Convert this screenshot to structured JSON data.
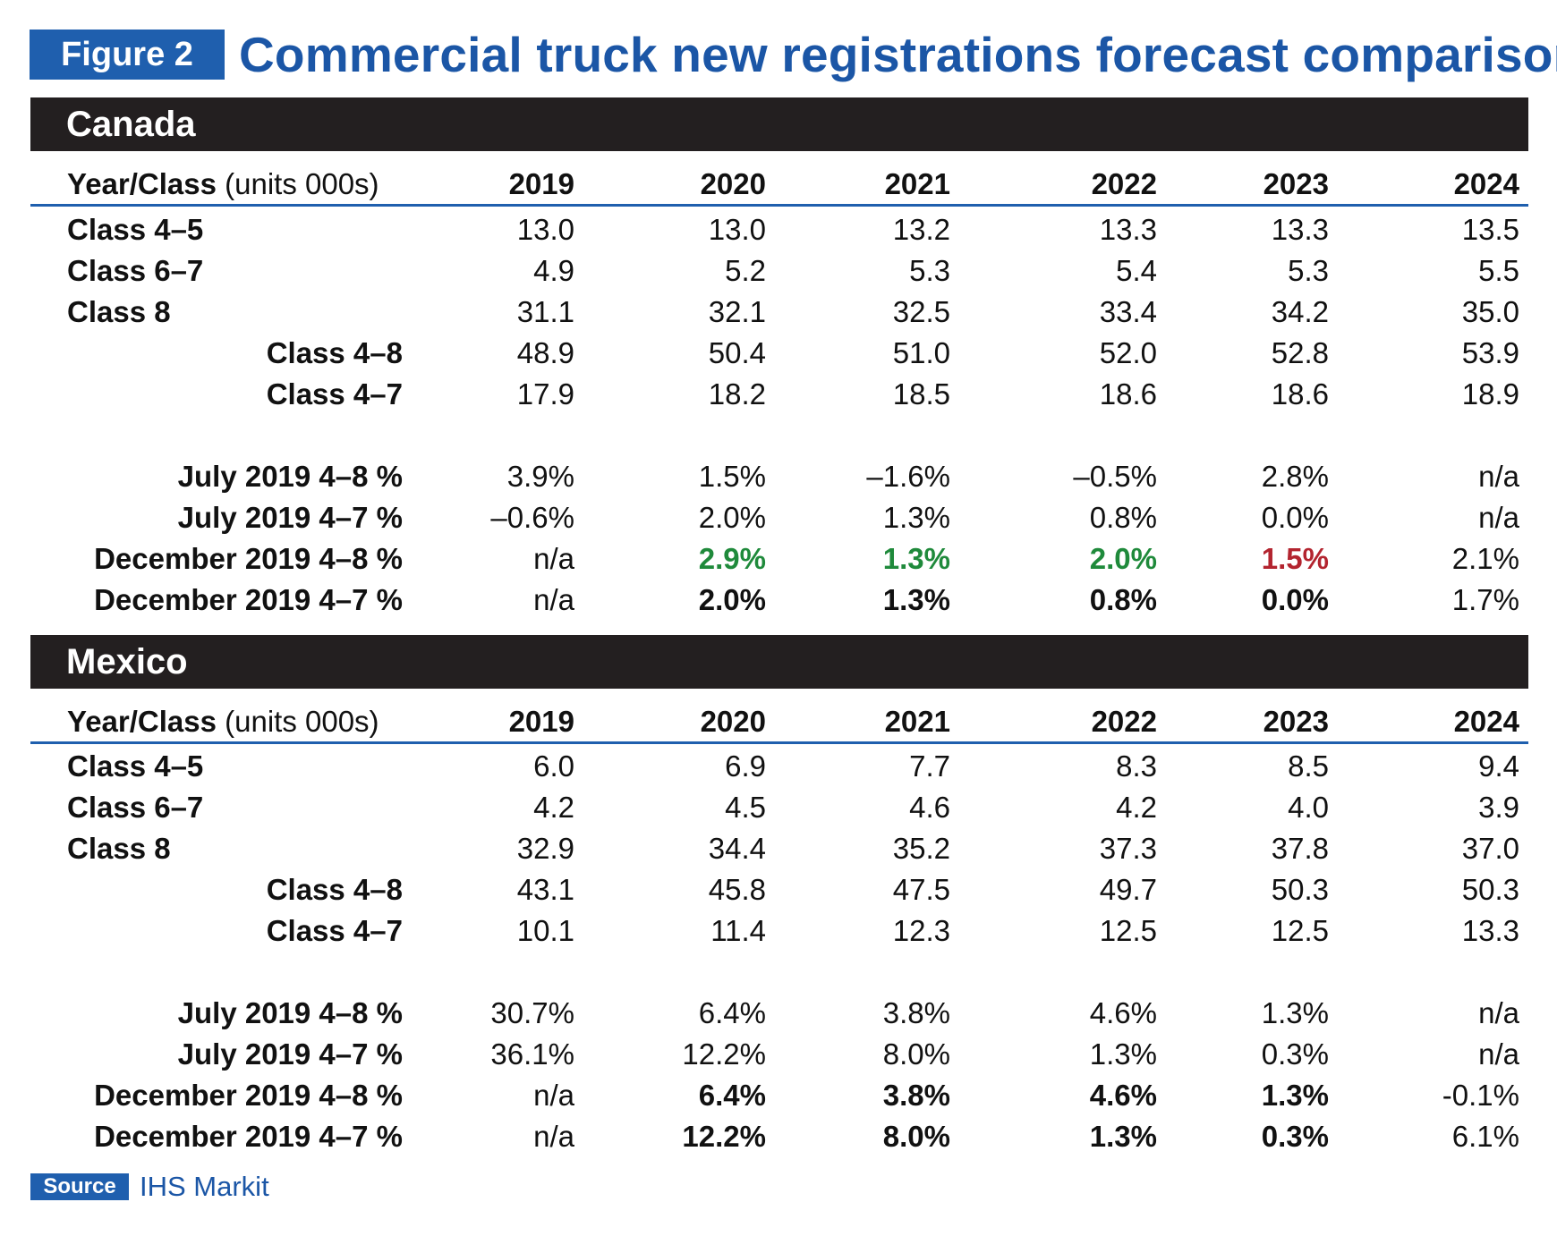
{
  "figure": {
    "badge": "Figure 2",
    "title": "Commercial truck new registrations forecast comparison"
  },
  "source": {
    "label": "Source",
    "text": "IHS Markit"
  },
  "canada": {
    "name": "Canada",
    "header": {
      "label": "Year/Class",
      "unit": " (units 000s)",
      "years": [
        "2019",
        "2020",
        "2021",
        "2022",
        "2023",
        "2024"
      ]
    },
    "units": [
      {
        "label": "Class 4–5",
        "values": [
          "13.0",
          "13.0",
          "13.2",
          "13.3",
          "13.3",
          "13.5"
        ]
      },
      {
        "label": "Class 6–7",
        "values": [
          "4.9",
          "5.2",
          "5.3",
          "5.4",
          "5.3",
          "5.5"
        ]
      },
      {
        "label": "Class 8",
        "values": [
          "31.1",
          "32.1",
          "32.5",
          "33.4",
          "34.2",
          "35.0"
        ]
      },
      {
        "label": "Class 4–8",
        "values": [
          "48.9",
          "50.4",
          "51.0",
          "52.0",
          "52.8",
          "53.9"
        ]
      },
      {
        "label": "Class 4–7",
        "values": [
          "17.9",
          "18.2",
          "18.5",
          "18.6",
          "18.6",
          "18.9"
        ]
      }
    ],
    "pct": [
      {
        "label": "July 2019 4–8 %",
        "values": [
          "3.9%",
          "1.5%",
          "–1.6%",
          "–0.5%",
          "2.8%",
          "n/a"
        ]
      },
      {
        "label": "July 2019 4–7 %",
        "values": [
          "–0.6%",
          "2.0%",
          "1.3%",
          "0.8%",
          "0.0%",
          "n/a"
        ]
      },
      {
        "label": "December 2019 4–8 %",
        "values": [
          "n/a",
          "2.9%",
          "1.3%",
          "2.0%",
          "1.5%",
          "2.1%"
        ]
      },
      {
        "label": "December 2019 4–7 %",
        "values": [
          "n/a",
          "2.0%",
          "1.3%",
          "0.8%",
          "0.0%",
          "1.7%"
        ]
      }
    ],
    "highlight_colors": {
      "up": "#1f8a3b",
      "down": "#b3242f"
    }
  },
  "mexico": {
    "name": "Mexico",
    "header": {
      "label": "Year/Class",
      "unit": " (units 000s)",
      "years": [
        "2019",
        "2020",
        "2021",
        "2022",
        "2023",
        "2024"
      ]
    },
    "units": [
      {
        "label": "Class 4–5",
        "values": [
          "6.0",
          "6.9",
          "7.7",
          "8.3",
          "8.5",
          "9.4"
        ]
      },
      {
        "label": "Class 6–7",
        "values": [
          "4.2",
          "4.5",
          "4.6",
          "4.2",
          "4.0",
          "3.9"
        ]
      },
      {
        "label": "Class 8",
        "values": [
          "32.9",
          "34.4",
          "35.2",
          "37.3",
          "37.8",
          "37.0"
        ]
      },
      {
        "label": "Class 4–8",
        "values": [
          "43.1",
          "45.8",
          "47.5",
          "49.7",
          "50.3",
          "50.3"
        ]
      },
      {
        "label": "Class 4–7",
        "values": [
          "10.1",
          "11.4",
          "12.3",
          "12.5",
          "12.5",
          "13.3"
        ]
      }
    ],
    "pct": [
      {
        "label": "July 2019 4–8 %",
        "values": [
          "30.7%",
          "6.4%",
          "3.8%",
          "4.6%",
          "1.3%",
          "n/a"
        ]
      },
      {
        "label": "July 2019 4–7 %",
        "values": [
          "36.1%",
          "12.2%",
          "8.0%",
          "1.3%",
          "0.3%",
          "n/a"
        ]
      },
      {
        "label": "December 2019 4–8 %",
        "values": [
          "n/a",
          "6.4%",
          "3.8%",
          "4.6%",
          "1.3%",
          "-0.1%"
        ]
      },
      {
        "label": "December 2019 4–7 %",
        "values": [
          "n/a",
          "12.2%",
          "8.0%",
          "1.3%",
          "0.3%",
          "6.1%"
        ]
      }
    ]
  }
}
